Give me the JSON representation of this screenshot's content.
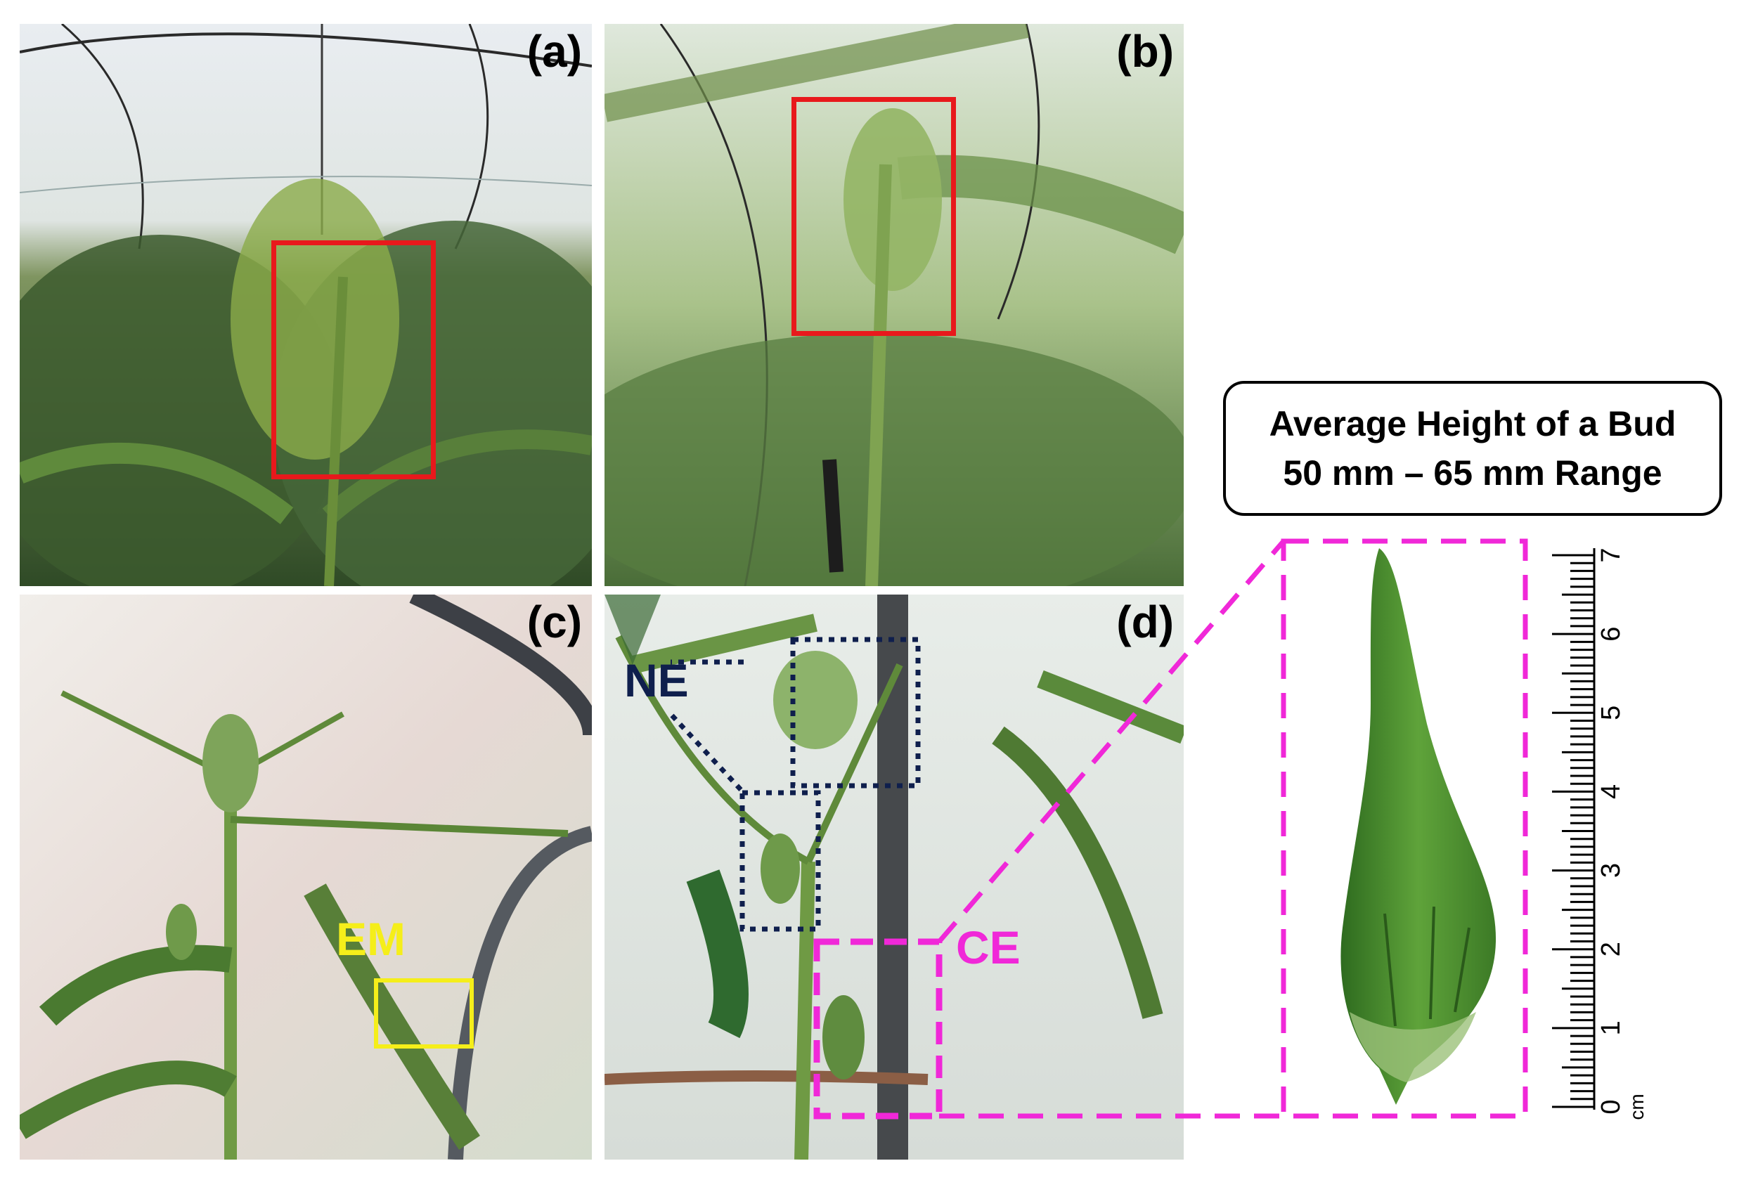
{
  "panels": {
    "a": {
      "label": "(a)"
    },
    "b": {
      "label": "(b)"
    },
    "c": {
      "label": "(c)",
      "annotation": "EM"
    },
    "d": {
      "label": "(d)",
      "annotation_ne": "NE",
      "annotation_ce": "CE"
    }
  },
  "info_box": {
    "line1": "Average Height of a Bud",
    "line2": "50 mm – 65 mm Range"
  },
  "ruler": {
    "unit": "cm",
    "ticks": [
      "0",
      "1",
      "2",
      "3",
      "4",
      "5",
      "6",
      "7"
    ]
  },
  "colors": {
    "highlight_red": "#e8191c",
    "highlight_yellow": "#f5ee1a",
    "highlight_navy": "#0f1f4d",
    "highlight_magenta": "#f028d8"
  }
}
